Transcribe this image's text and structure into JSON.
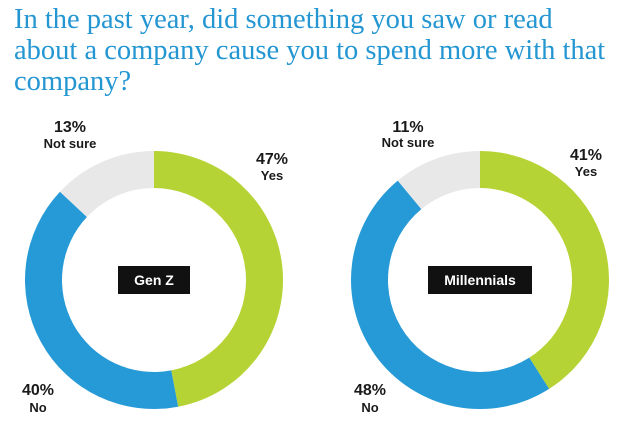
{
  "title": "In the past year, did something you saw or read about a company cause you to spend more with that company?",
  "colors": {
    "yes": "#b5d334",
    "no": "#269ad7",
    "not_sure": "#e8e8e8",
    "title": "#2496d2",
    "badge": "#111111"
  },
  "chart_data": [
    {
      "type": "pie",
      "name": "Gen Z",
      "categories": [
        "Yes",
        "No",
        "Not sure"
      ],
      "values": [
        47,
        40,
        13
      ],
      "labels": [
        "47%",
        "40%",
        "13%"
      ]
    },
    {
      "type": "pie",
      "name": "Millennials",
      "categories": [
        "Yes",
        "No",
        "Not sure"
      ],
      "values": [
        41,
        48,
        11
      ],
      "labels": [
        "41%",
        "48%",
        "11%"
      ]
    }
  ]
}
